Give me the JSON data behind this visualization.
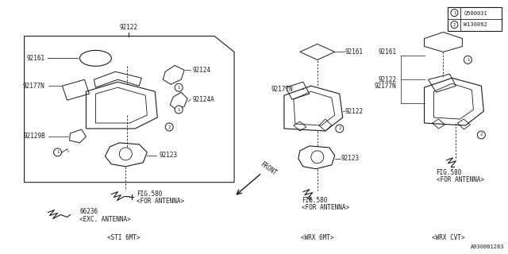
{
  "bg_color": "#ffffff",
  "line_color": "#1a1a1a",
  "diagram_id": "A930001283",
  "legend": [
    {
      "num": "1",
      "code": "Q500031"
    },
    {
      "num": "2",
      "code": "W130092"
    }
  ]
}
